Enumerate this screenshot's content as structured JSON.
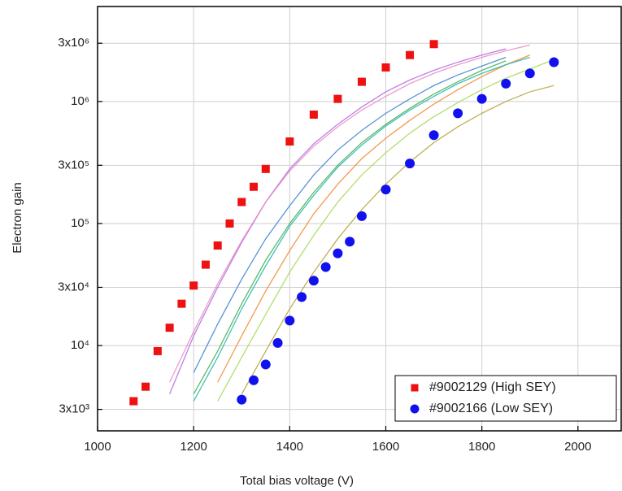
{
  "chart_data": {
    "type": "scatter",
    "log_y": true,
    "grid": true,
    "legend_position": "lower right",
    "xlabel": "Total bias voltage (V)",
    "ylabel": "Electron gain",
    "xlim": [
      1000,
      2090
    ],
    "xticks": [
      1000,
      1200,
      1400,
      1600,
      1800,
      2000
    ],
    "ylim": [
      2000,
      6000000
    ],
    "yticks": [
      {
        "value": 3000,
        "label": "3x10³"
      },
      {
        "value": 10000,
        "label": "10⁴"
      },
      {
        "value": 30000,
        "label": "3x10⁴"
      },
      {
        "value": 100000,
        "label": "10⁵"
      },
      {
        "value": 300000,
        "label": "3x10⁵"
      },
      {
        "value": 1000000,
        "label": "10⁶"
      },
      {
        "value": 3000000,
        "label": "3x10⁶"
      }
    ],
    "curves": [
      {
        "color": "#b36ae2",
        "x": [
          1150,
          1200,
          1250,
          1300,
          1350,
          1400,
          1450,
          1500,
          1550,
          1600,
          1650,
          1700,
          1750,
          1800,
          1850,
          1900,
          1950
        ],
        "values": [
          4000,
          12000,
          30000,
          70000,
          150000,
          280000,
          450000,
          650000,
          900000,
          1200000,
          1500000,
          1800000,
          2100000,
          2400000,
          2700000,
          null,
          null
        ]
      },
      {
        "color": "#3a7fd0",
        "x": [
          1150,
          1200,
          1250,
          1300,
          1350,
          1400,
          1450,
          1500,
          1550,
          1600,
          1650,
          1700,
          1750,
          1800,
          1850,
          1900,
          1950
        ],
        "values": [
          null,
          6000,
          15000,
          35000,
          75000,
          140000,
          250000,
          400000,
          580000,
          800000,
          1050000,
          1350000,
          1650000,
          1950000,
          2300000,
          null,
          null
        ]
      },
      {
        "color": "#3fae49",
        "x": [
          1150,
          1200,
          1250,
          1300,
          1350,
          1400,
          1450,
          1500,
          1550,
          1600,
          1650,
          1700,
          1750,
          1800,
          1850,
          1900,
          1950
        ],
        "values": [
          null,
          4000,
          9000,
          22000,
          50000,
          100000,
          180000,
          300000,
          460000,
          650000,
          880000,
          1150000,
          1450000,
          1800000,
          2150000,
          null,
          null
        ]
      },
      {
        "color": "#f08a2c",
        "x": [
          1150,
          1200,
          1250,
          1300,
          1350,
          1400,
          1450,
          1500,
          1550,
          1600,
          1650,
          1700,
          1750,
          1800,
          1850,
          1900,
          1950
        ],
        "values": [
          null,
          null,
          5000,
          12000,
          28000,
          60000,
          120000,
          210000,
          340000,
          500000,
          700000,
          950000,
          1250000,
          1600000,
          2000000,
          2400000,
          null
        ]
      },
      {
        "color": "#1fb5b0",
        "x": [
          1150,
          1200,
          1250,
          1300,
          1350,
          1400,
          1450,
          1500,
          1550,
          1600,
          1650,
          1700,
          1750,
          1800,
          1850,
          1900,
          1950
        ],
        "values": [
          null,
          3500,
          8000,
          20000,
          45000,
          95000,
          170000,
          290000,
          440000,
          630000,
          850000,
          1100000,
          1400000,
          1700000,
          2000000,
          2300000,
          null
        ]
      },
      {
        "color": "#b5a23a",
        "x": [
          1150,
          1200,
          1250,
          1300,
          1350,
          1400,
          1450,
          1500,
          1550,
          1600,
          1650,
          1700,
          1750,
          1800,
          1850,
          1900,
          1950
        ],
        "values": [
          null,
          null,
          null,
          4000,
          9000,
          20000,
          40000,
          75000,
          130000,
          210000,
          320000,
          460000,
          620000,
          800000,
          1000000,
          1200000,
          1350000
        ]
      },
      {
        "color": "#a6d854",
        "x": [
          1150,
          1200,
          1250,
          1300,
          1350,
          1400,
          1450,
          1500,
          1550,
          1600,
          1650,
          1700,
          1750,
          1800,
          1850,
          1900,
          1950
        ],
        "values": [
          null,
          null,
          3500,
          8000,
          18000,
          40000,
          80000,
          150000,
          250000,
          380000,
          550000,
          750000,
          980000,
          1250000,
          1550000,
          1850000,
          2200000
        ]
      },
      {
        "color": "#e78ac3",
        "x": [
          1150,
          1200,
          1250,
          1300,
          1350,
          1400,
          1450,
          1500,
          1550,
          1600,
          1650,
          1700,
          1750,
          1800,
          1850,
          1900,
          1950
        ],
        "values": [
          5000,
          13000,
          32000,
          72000,
          150000,
          270000,
          430000,
          620000,
          850000,
          1100000,
          1400000,
          1700000,
          2000000,
          2300000,
          2600000,
          2900000,
          null
        ]
      }
    ],
    "series": [
      {
        "name": "#9002129 (High SEY)",
        "color": "#ee1111",
        "marker": "square",
        "x": [
          1075,
          1100,
          1125,
          1150,
          1175,
          1200,
          1225,
          1250,
          1275,
          1300,
          1325,
          1350,
          1400,
          1450,
          1500,
          1550,
          1600,
          1650,
          1700
        ],
        "values": [
          3500,
          4600,
          9000,
          14000,
          22000,
          31000,
          46000,
          66000,
          100000,
          150000,
          200000,
          280000,
          470000,
          780000,
          1050000,
          1450000,
          1900000,
          2400000,
          2950000
        ]
      },
      {
        "name": "#9002166 (Low SEY)",
        "color": "#1111ee",
        "marker": "circle",
        "x": [
          1300,
          1325,
          1350,
          1375,
          1400,
          1425,
          1450,
          1475,
          1500,
          1525,
          1550,
          1600,
          1650,
          1700,
          1750,
          1800,
          1850,
          1900,
          1950
        ],
        "values": [
          3600,
          5200,
          7000,
          10500,
          16000,
          25000,
          34000,
          44000,
          57000,
          71000,
          115000,
          190000,
          310000,
          530000,
          800000,
          1050000,
          1400000,
          1700000,
          2100000
        ]
      }
    ]
  }
}
